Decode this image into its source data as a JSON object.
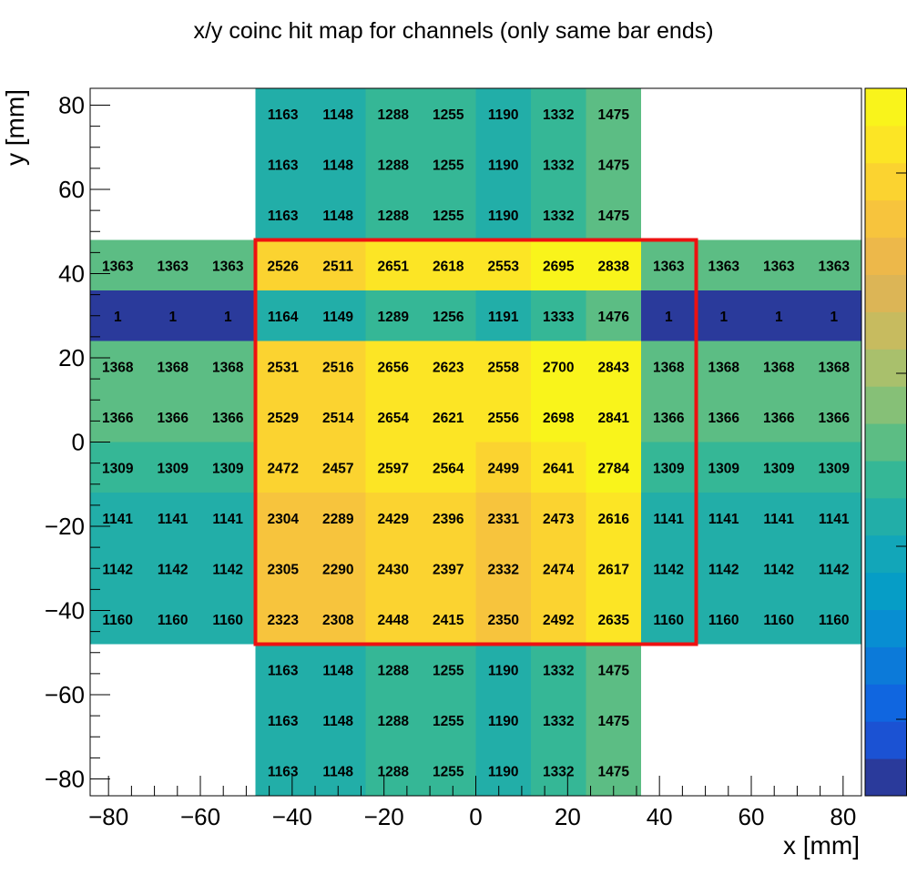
{
  "chart_data": {
    "type": "heatmap",
    "title": "x/y coinc hit map for channels (only same bar ends)",
    "xlabel": "x [mm]",
    "ylabel": "y [mm]",
    "xlim": [
      -84,
      84
    ],
    "ylim": [
      -84,
      84
    ],
    "x_ticks": [
      -80,
      -60,
      -40,
      -20,
      0,
      20,
      40,
      60,
      80
    ],
    "y_ticks": [
      -80,
      -60,
      -40,
      -20,
      0,
      20,
      40,
      60,
      80
    ],
    "x_edges": [
      -84,
      -72,
      -60,
      -48,
      -36,
      -24,
      -12,
      0,
      12,
      24,
      36,
      48,
      60,
      72,
      84
    ],
    "y_edges": [
      84,
      72,
      60,
      48,
      36,
      24,
      12,
      0,
      -12,
      -24,
      -36,
      -48,
      -60,
      -72,
      -84
    ],
    "rows": [
      [
        null,
        null,
        null,
        1163,
        1148,
        1288,
        1255,
        1190,
        1332,
        1475,
        null,
        null,
        null,
        null
      ],
      [
        null,
        null,
        null,
        1163,
        1148,
        1288,
        1255,
        1190,
        1332,
        1475,
        null,
        null,
        null,
        null
      ],
      [
        null,
        null,
        null,
        1163,
        1148,
        1288,
        1255,
        1190,
        1332,
        1475,
        null,
        null,
        null,
        null
      ],
      [
        1363,
        1363,
        1363,
        2526,
        2511,
        2651,
        2618,
        2553,
        2695,
        2838,
        1363,
        1363,
        1363,
        1363
      ],
      [
        1,
        1,
        1,
        1164,
        1149,
        1289,
        1256,
        1191,
        1333,
        1476,
        1,
        1,
        1,
        1
      ],
      [
        1368,
        1368,
        1368,
        2531,
        2516,
        2656,
        2623,
        2558,
        2700,
        2843,
        1368,
        1368,
        1368,
        1368
      ],
      [
        1366,
        1366,
        1366,
        2529,
        2514,
        2654,
        2621,
        2556,
        2698,
        2841,
        1366,
        1366,
        1366,
        1366
      ],
      [
        1309,
        1309,
        1309,
        2472,
        2457,
        2597,
        2564,
        2499,
        2641,
        2784,
        1309,
        1309,
        1309,
        1309
      ],
      [
        1141,
        1141,
        1141,
        2304,
        2289,
        2429,
        2396,
        2331,
        2473,
        2616,
        1141,
        1141,
        1141,
        1141
      ],
      [
        1142,
        1142,
        1142,
        2305,
        2290,
        2430,
        2397,
        2332,
        2474,
        2617,
        1142,
        1142,
        1142,
        1142
      ],
      [
        1160,
        1160,
        1160,
        2323,
        2308,
        2448,
        2415,
        2350,
        2492,
        2635,
        1160,
        1160,
        1160,
        1160
      ],
      [
        null,
        null,
        null,
        1163,
        1148,
        1288,
        1255,
        1190,
        1332,
        1475,
        null,
        null,
        null,
        null
      ],
      [
        null,
        null,
        null,
        1163,
        1148,
        1288,
        1255,
        1190,
        1332,
        1475,
        null,
        null,
        null,
        null
      ],
      [
        null,
        null,
        null,
        1163,
        1148,
        1288,
        1255,
        1190,
        1332,
        1475,
        null,
        null,
        null,
        null
      ]
    ],
    "z_range": [
      1,
      2843
    ],
    "palette": [
      "#2a3a9b",
      "#1b52d3",
      "#1066e0",
      "#0c7ad9",
      "#088ed2",
      "#069dc6",
      "#12a6b9",
      "#22aea8",
      "#35b796",
      "#5cbd84",
      "#86c077",
      "#a9c06c",
      "#c7bb5f",
      "#dcb556",
      "#edb84a",
      "#f7c43d",
      "#fbd330",
      "#fce525",
      "#f9f41b"
    ],
    "cell_border_color": "#000000",
    "highlight_box": {
      "x": [
        -48,
        48
      ],
      "y": [
        -48,
        48
      ],
      "color": "#ee1111"
    },
    "colorbar": true,
    "grid": false
  }
}
